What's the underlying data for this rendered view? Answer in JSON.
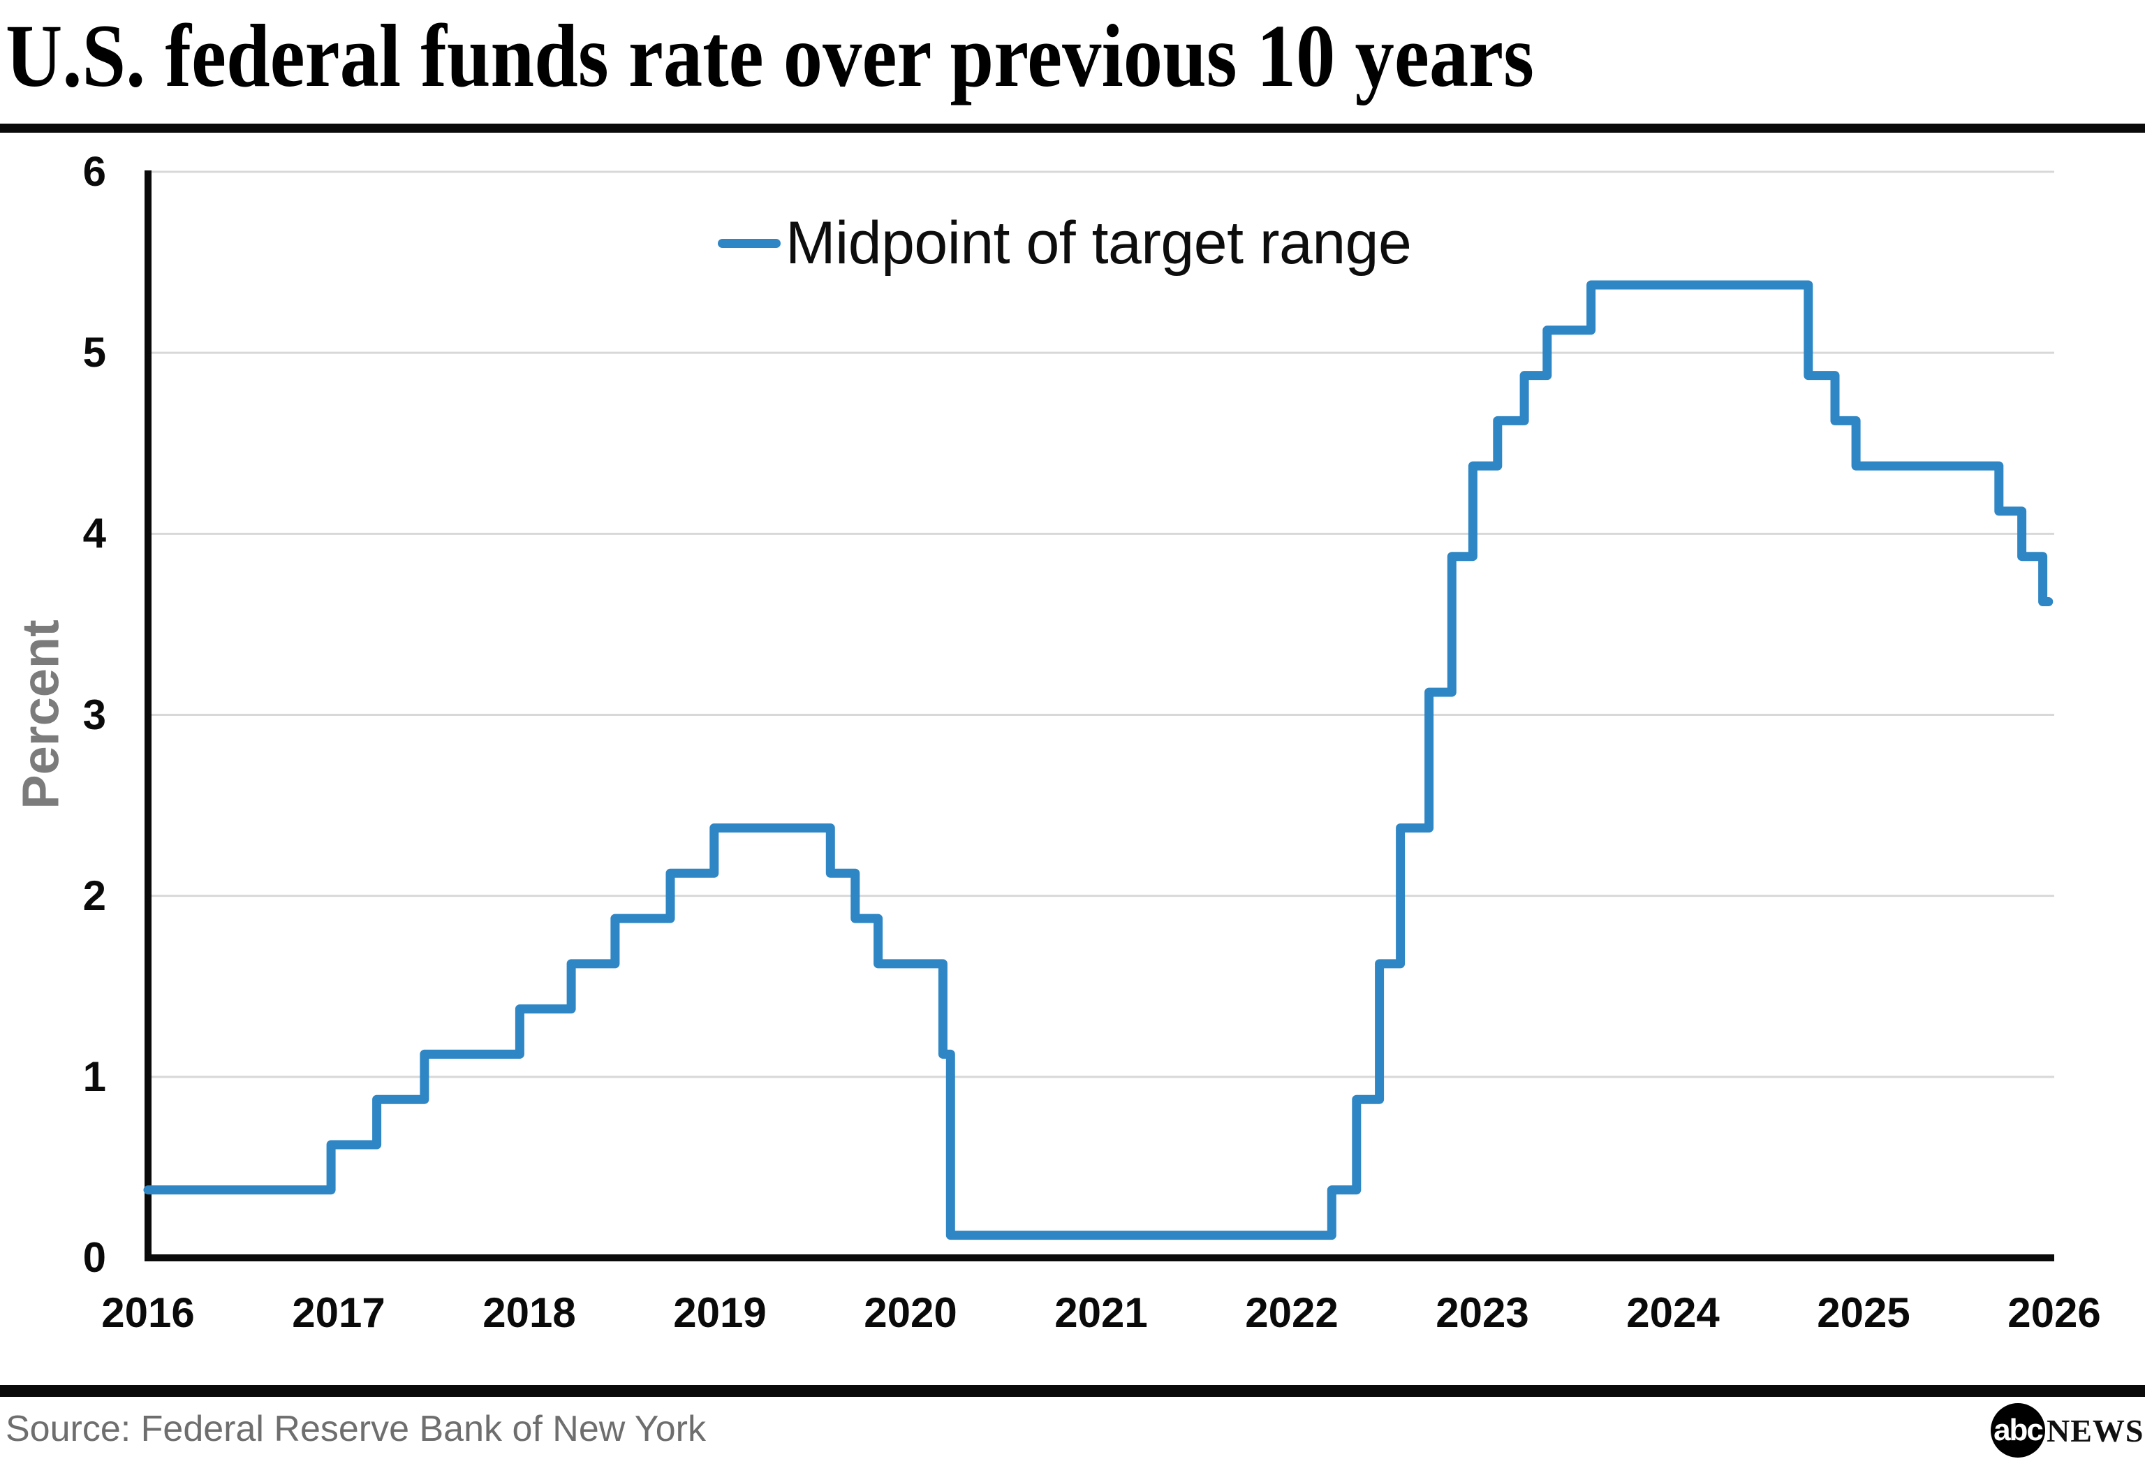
{
  "header": {
    "title": "U.S. federal funds rate over previous 10 years"
  },
  "footer": {
    "source": "Source: Federal Reserve Bank of New York",
    "logo_abc": "abc",
    "logo_news": "NEWS"
  },
  "chart_data": {
    "type": "line",
    "step_style": "step-after",
    "title": "U.S. federal funds rate over previous 10 years",
    "legend": "Midpoint of target range",
    "legend_position": "upper-center",
    "xlabel": "",
    "ylabel": "Percent",
    "xlim": [
      2016,
      2026
    ],
    "ylim": [
      0,
      6
    ],
    "xticks": [
      2016,
      2017,
      2018,
      2019,
      2020,
      2021,
      2022,
      2023,
      2024,
      2025,
      2026
    ],
    "yticks": [
      0,
      1,
      2,
      3,
      4,
      5,
      6
    ],
    "grid": "horizontal",
    "colors": {
      "line": "#2E86C5",
      "grid": "#D8D8D8",
      "axis": "#0A0A0A",
      "tick_label": "#0A0A0A",
      "axis_title": "#7B7B7B",
      "source_text": "#6E6E6E"
    },
    "series": [
      {
        "name": "Midpoint of target range",
        "points": [
          [
            2016.0,
            0.375
          ],
          [
            2016.96,
            0.625
          ],
          [
            2017.2,
            0.875
          ],
          [
            2017.45,
            1.125
          ],
          [
            2017.95,
            1.375
          ],
          [
            2018.22,
            1.625
          ],
          [
            2018.45,
            1.875
          ],
          [
            2018.74,
            2.125
          ],
          [
            2018.97,
            2.375
          ],
          [
            2019.58,
            2.125
          ],
          [
            2019.71,
            1.875
          ],
          [
            2019.83,
            1.625
          ],
          [
            2020.17,
            1.125
          ],
          [
            2020.21,
            0.125
          ],
          [
            2022.21,
            0.375
          ],
          [
            2022.34,
            0.875
          ],
          [
            2022.46,
            1.625
          ],
          [
            2022.57,
            2.375
          ],
          [
            2022.72,
            3.125
          ],
          [
            2022.84,
            3.875
          ],
          [
            2022.95,
            4.375
          ],
          [
            2023.08,
            4.625
          ],
          [
            2023.22,
            4.875
          ],
          [
            2023.34,
            5.125
          ],
          [
            2023.57,
            5.375
          ],
          [
            2024.71,
            4.875
          ],
          [
            2024.85,
            4.625
          ],
          [
            2024.96,
            4.375
          ],
          [
            2025.71,
            4.125
          ],
          [
            2025.83,
            3.875
          ],
          [
            2025.94,
            3.625
          ]
        ],
        "x_end": 2025.97
      }
    ]
  }
}
